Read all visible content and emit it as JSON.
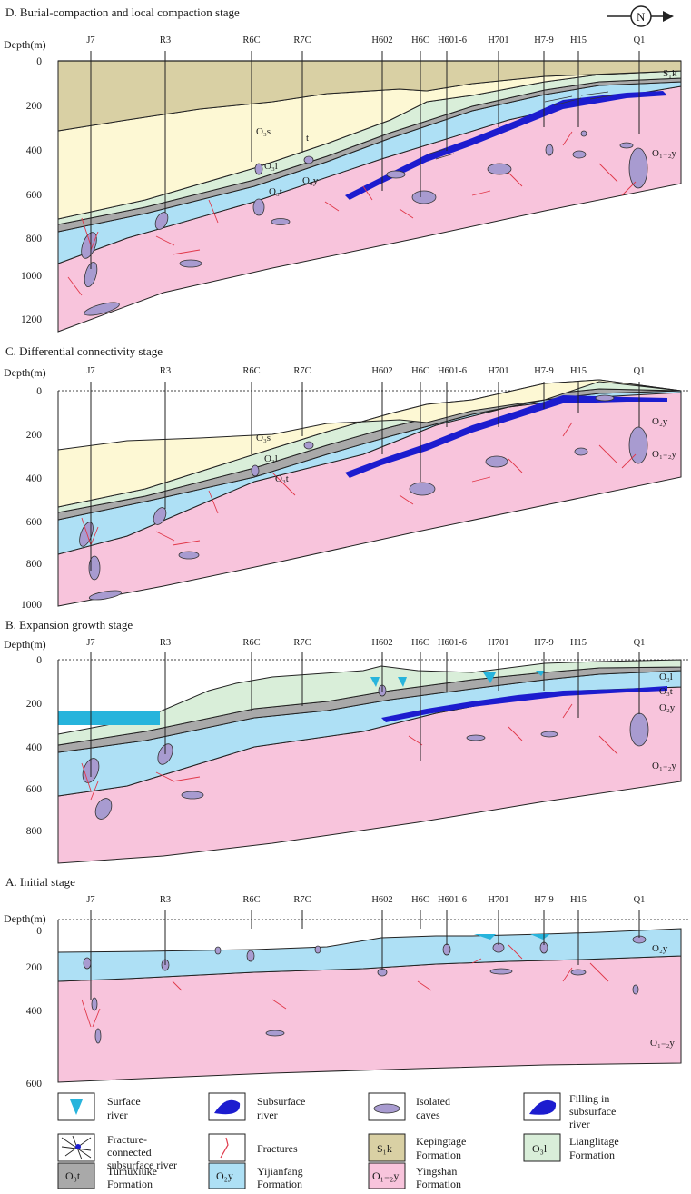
{
  "north_label": "N",
  "depth_header": "Depth(m)",
  "wells": [
    "J7",
    "R3",
    "R6C",
    "R7C",
    "H602",
    "H6C",
    "H601-6",
    "H701",
    "H7-9",
    "H15",
    "Q1"
  ],
  "panels": {
    "D": {
      "title": "D. Burial-compaction and local compaction stage",
      "depth_ticks": [
        "0",
        "200",
        "400",
        "600",
        "800",
        "1000",
        "1200"
      ],
      "formation_labels": {
        "skk": "S₁k",
        "o3s": "O₃s",
        "o3l": "O₃l",
        "o3t": "O₃t",
        "o2y": "O₂y",
        "o12y": "O₁₋₂y",
        "t": "t"
      }
    },
    "C": {
      "title": "C. Differential connectivity stage",
      "depth_ticks": [
        "0",
        "200",
        "400",
        "600",
        "800",
        "1000"
      ],
      "formation_labels": {
        "o3s": "O₃s",
        "o3l": "O₃l",
        "o3t": "O₃t",
        "o2y": "O₂y",
        "o12y": "O₁₋₂y"
      }
    },
    "B": {
      "title": "B. Expansion growth stage",
      "depth_ticks": [
        "0",
        "200",
        "400",
        "600",
        "800"
      ],
      "formation_labels": {
        "o3l": "O₃l",
        "o3t": "O₃t",
        "o2y": "O₂y",
        "o12y": "O₁₋₂y"
      }
    },
    "A": {
      "title": "A. Initial stage",
      "depth_ticks": [
        "0",
        "200",
        "400",
        "600"
      ],
      "formation_labels": {
        "o2y": "O₂y",
        "o12y": "O₁₋₂y"
      }
    }
  },
  "legend": [
    {
      "key": "surface-river",
      "lines": [
        "Surface",
        "river"
      ]
    },
    {
      "key": "subsurface-river",
      "lines": [
        "Subsurface",
        "river"
      ]
    },
    {
      "key": "isolated-caves",
      "lines": [
        "Isolated",
        "caves"
      ]
    },
    {
      "key": "filling",
      "lines": [
        "Filling in",
        "subsurface",
        "river"
      ]
    },
    {
      "key": "fracture-river",
      "lines": [
        "Fracture-",
        "connected",
        "subsurface river"
      ]
    },
    {
      "key": "fractures",
      "lines": [
        "Fractures"
      ]
    },
    {
      "key": "kepingtage",
      "symbol": "S₁k",
      "lines": [
        "Kepingtage",
        "Formation"
      ]
    },
    {
      "key": "lianglitage",
      "symbol": "O₃l",
      "lines": [
        "Lianglitage",
        "Formation"
      ]
    },
    {
      "key": "tumuxiuke",
      "symbol": "O₃t",
      "lines": [
        "Tumuxiuke",
        "Formation"
      ]
    },
    {
      "key": "yijianfang",
      "symbol": "O₂y",
      "lines": [
        "Yijianfang",
        "Formation"
      ]
    },
    {
      "key": "yingshan",
      "symbol": "O₁₋₂y",
      "lines": [
        "Yingshan",
        "Formation"
      ]
    }
  ],
  "colors": {
    "S1k": "#d9d0a4",
    "O3s": "#fdf8d4",
    "O3l": "#d9eed9",
    "O3t": "#a9a9a9",
    "O2y": "#aee0f5",
    "O12y": "#f8c4dc",
    "river": "#1c1ccf",
    "cave": "#a89bd0",
    "surface_water": "#27b4dc",
    "fracture": "#e0384a",
    "outline": "#222222"
  }
}
